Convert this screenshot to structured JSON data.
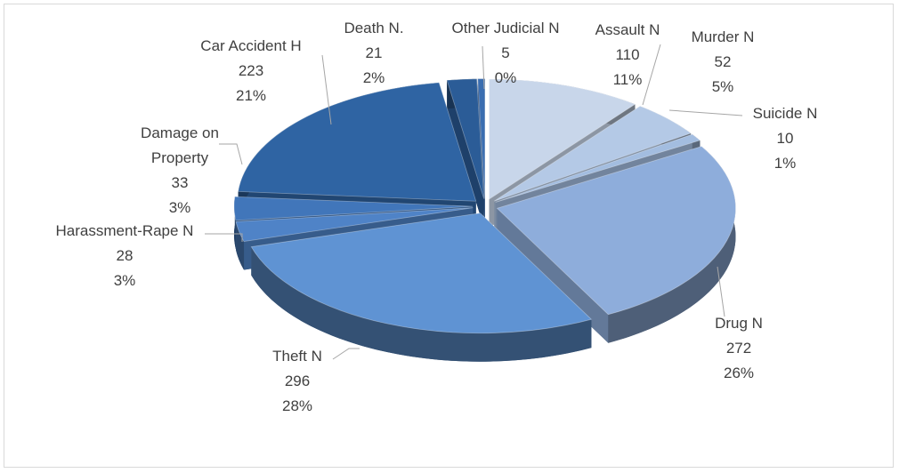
{
  "chart_data": {
    "type": "pie3d",
    "categories": [
      "Assault N",
      "Murder N",
      "Suicide N",
      "Drug N",
      "Theft N",
      "Harassment-Rape N",
      "Damage on Property",
      "Car Accident H",
      "Death N.",
      "Other Judicial N"
    ],
    "values": [
      110,
      52,
      10,
      272,
      296,
      28,
      33,
      223,
      21,
      5
    ],
    "percent_labels": [
      "11%",
      "5%",
      "1%",
      "26%",
      "28%",
      "3%",
      "3%",
      "21%",
      "2%",
      "0%"
    ],
    "colors": [
      "#c8d6ea",
      "#b4c9e6",
      "#a3bde0",
      "#8eaddb",
      "#5f93d3",
      "#4f83c7",
      "#4176ba",
      "#2f64a3",
      "#2b5c97",
      "#3a6db0"
    ]
  }
}
